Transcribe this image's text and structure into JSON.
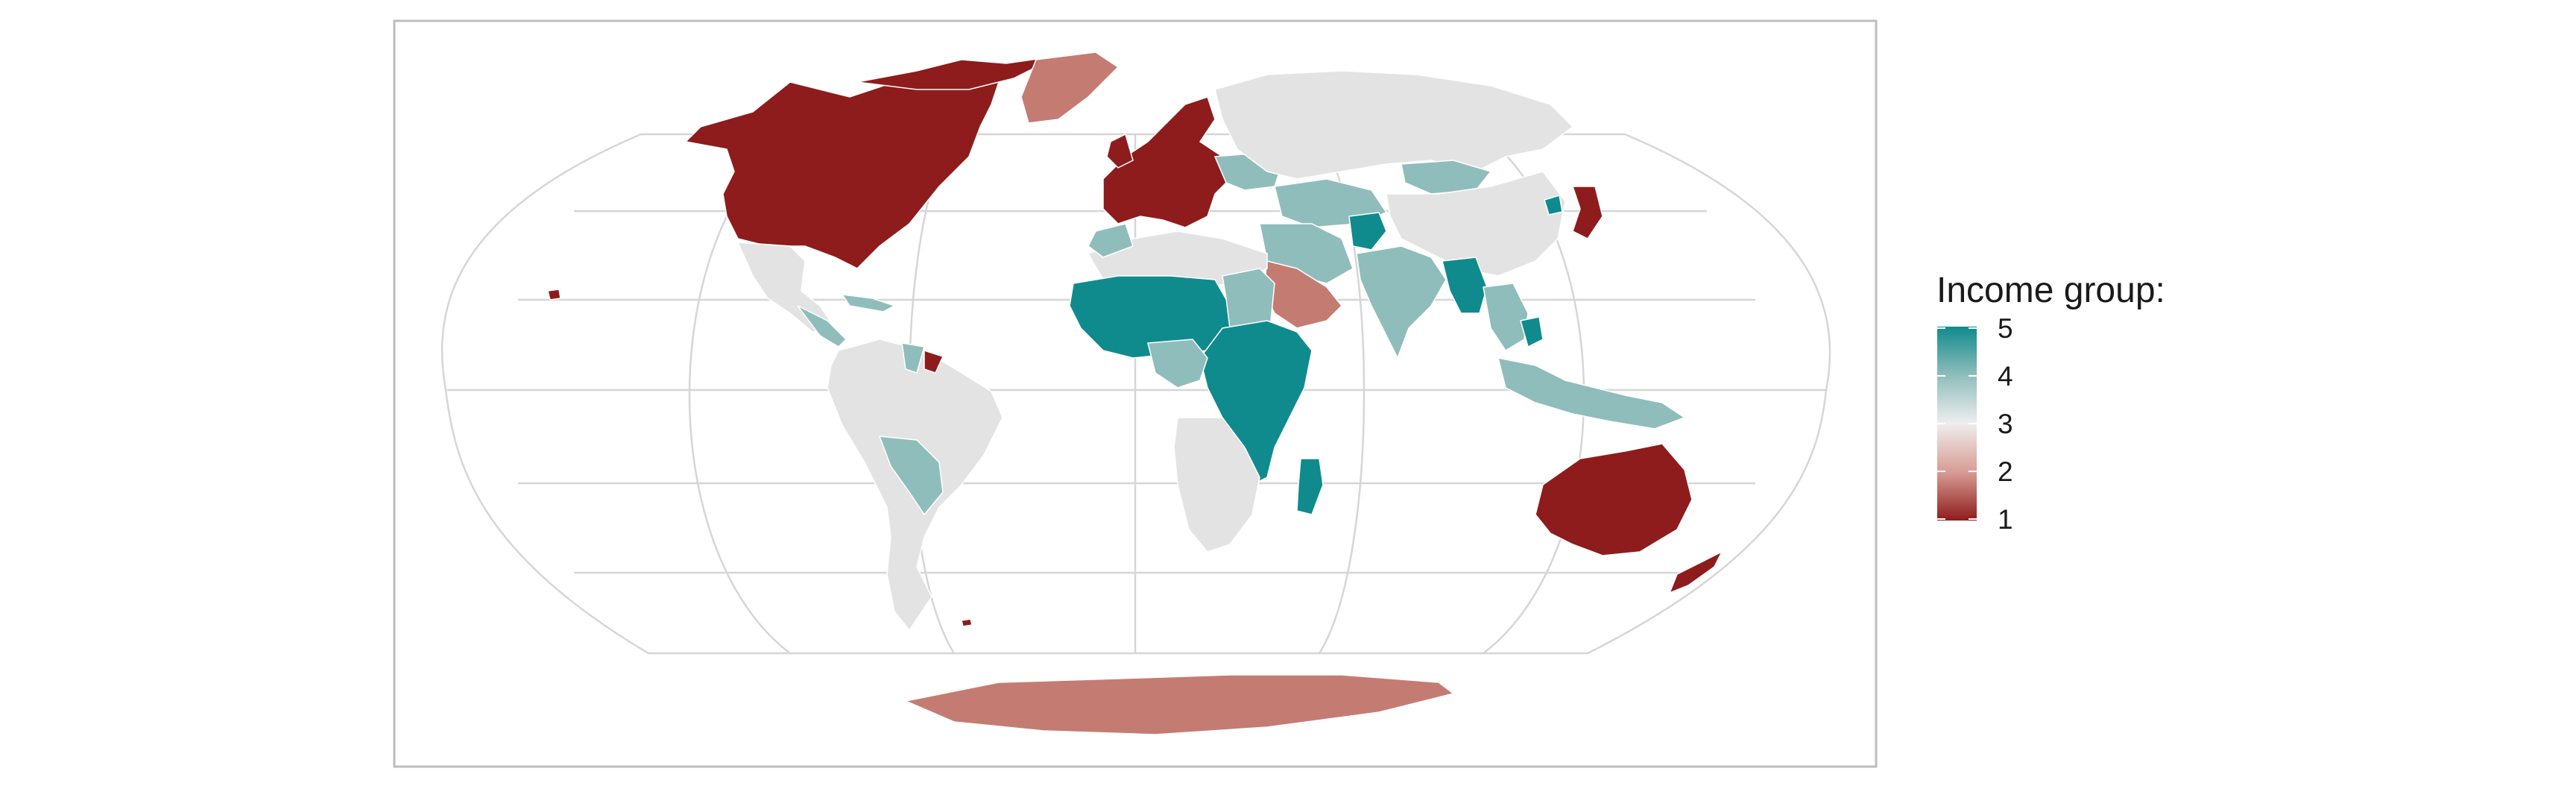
{
  "map": {
    "projection": "Robinson / Winkel-like world map",
    "regions": [
      {
        "name": "North America (USA, Canada)",
        "value": 1
      },
      {
        "name": "Greenland",
        "value": 2
      },
      {
        "name": "Mexico and Central America",
        "value": 3
      },
      {
        "name": "Caribbean islands",
        "value": 4
      },
      {
        "name": "South America",
        "value": 3
      },
      {
        "name": "Bolivia",
        "value": 4
      },
      {
        "name": "Guyana / Suriname",
        "value": 4
      },
      {
        "name": "French Guiana",
        "value": 1
      },
      {
        "name": "Western Europe",
        "value": 1
      },
      {
        "name": "Eastern Europe / Ukraine",
        "value": 4
      },
      {
        "name": "Russia",
        "value": 3
      },
      {
        "name": "Central Asia",
        "value": 4
      },
      {
        "name": "North Africa",
        "value": 3
      },
      {
        "name": "Morocco",
        "value": 4
      },
      {
        "name": "West Africa / Sahel",
        "value": 5
      },
      {
        "name": "Central Africa",
        "value": 5
      },
      {
        "name": "East Africa",
        "value": 5
      },
      {
        "name": "Southern Africa",
        "value": 3
      },
      {
        "name": "Madagascar",
        "value": 5
      },
      {
        "name": "Arabian Peninsula",
        "value": 2
      },
      {
        "name": "Iran",
        "value": 4
      },
      {
        "name": "Afghanistan",
        "value": 5
      },
      {
        "name": "India",
        "value": 4
      },
      {
        "name": "Myanmar / Bangladesh",
        "value": 5
      },
      {
        "name": "Mongolia",
        "value": 4
      },
      {
        "name": "China",
        "value": 3
      },
      {
        "name": "North Korea",
        "value": 5
      },
      {
        "name": "Japan / South Korea",
        "value": 1
      },
      {
        "name": "Southeast Asia",
        "value": 4
      },
      {
        "name": "Indonesia / Papua",
        "value": 4
      },
      {
        "name": "Australia",
        "value": 1
      },
      {
        "name": "New Zealand",
        "value": 1
      },
      {
        "name": "Antarctica",
        "value": 2
      }
    ]
  },
  "legend": {
    "title": "Income group:",
    "ticks": [
      "5",
      "4",
      "3",
      "2",
      "1"
    ],
    "colors": {
      "high": "#0e8a8a",
      "mid": "#e6e6e6",
      "low": "#8b1a1a"
    }
  },
  "colors": {
    "c1": "#8e1c1c",
    "c2": "#c47c72",
    "c3": "#e3e3e3",
    "c4": "#8fbdbb",
    "c5": "#0f8b8d",
    "grid": "#d4d4d4",
    "panel_border": "#bdbdbd"
  }
}
